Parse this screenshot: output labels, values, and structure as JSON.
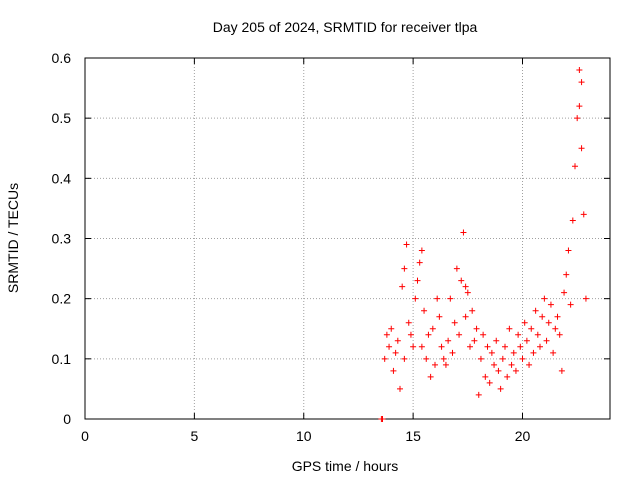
{
  "chart_data": {
    "type": "scatter",
    "title": "Day 205 of 2024, SRMTID for receiver tlpa",
    "xlabel": "GPS time / hours",
    "ylabel": "SRMTID / TECUs",
    "xlim": [
      0,
      24
    ],
    "ylim": [
      0,
      0.6
    ],
    "x_ticks": [
      0,
      5,
      10,
      15,
      20
    ],
    "x_tick_labels": [
      "0",
      "5",
      "10",
      "15",
      "20"
    ],
    "y_ticks": [
      0,
      0.1,
      0.2,
      0.3,
      0.4,
      0.5,
      0.6
    ],
    "y_tick_labels": [
      "0",
      "0.1",
      "0.2",
      "0.3",
      "0.4",
      "0.5",
      "0.6"
    ],
    "grid": true,
    "marker": "plus",
    "color": "#ff0000",
    "series": [
      {
        "name": "SRMTID",
        "x": [
          13.55,
          13.6,
          13.9,
          14.0,
          13.7,
          13.8,
          14.1,
          14.2,
          14.3,
          14.5,
          14.7,
          14.8,
          14.6,
          14.4,
          14.9,
          15.0,
          15.1,
          15.2,
          15.3,
          15.4,
          15.5,
          15.6,
          15.7,
          15.8,
          15.9,
          16.0,
          16.1,
          16.2,
          16.3,
          16.4,
          16.5,
          16.6,
          16.7,
          16.8,
          16.9,
          17.0,
          17.1,
          17.2,
          17.3,
          17.4,
          17.5,
          17.6,
          17.7,
          17.8,
          17.9,
          18.0,
          18.1,
          18.2,
          18.3,
          18.4,
          18.5,
          18.6,
          18.7,
          18.8,
          18.9,
          19.0,
          19.1,
          19.2,
          19.3,
          19.4,
          19.5,
          19.6,
          19.7,
          19.8,
          19.9,
          20.0,
          20.1,
          20.2,
          20.3,
          20.4,
          20.5,
          20.6,
          20.7,
          20.8,
          20.9,
          21.0,
          21.1,
          21.2,
          21.3,
          21.4,
          21.5,
          21.6,
          21.7,
          21.8,
          21.9,
          22.0,
          22.1,
          22.2,
          22.3,
          22.4,
          22.5,
          22.6,
          22.7,
          22.8,
          22.9,
          14.6,
          15.4,
          17.4,
          22.6,
          22.7
        ],
        "y": [
          0.0,
          0.0,
          0.12,
          0.15,
          0.1,
          0.14,
          0.08,
          0.11,
          0.13,
          0.22,
          0.29,
          0.16,
          0.1,
          0.05,
          0.14,
          0.12,
          0.2,
          0.23,
          0.26,
          0.12,
          0.18,
          0.1,
          0.14,
          0.07,
          0.15,
          0.09,
          0.2,
          0.17,
          0.12,
          0.1,
          0.09,
          0.13,
          0.2,
          0.11,
          0.16,
          0.25,
          0.14,
          0.23,
          0.31,
          0.17,
          0.21,
          0.12,
          0.18,
          0.13,
          0.15,
          0.04,
          0.1,
          0.14,
          0.07,
          0.12,
          0.06,
          0.11,
          0.09,
          0.13,
          0.08,
          0.05,
          0.1,
          0.12,
          0.07,
          0.15,
          0.09,
          0.11,
          0.08,
          0.14,
          0.12,
          0.1,
          0.16,
          0.13,
          0.09,
          0.15,
          0.11,
          0.18,
          0.14,
          0.12,
          0.17,
          0.2,
          0.13,
          0.16,
          0.19,
          0.11,
          0.15,
          0.17,
          0.14,
          0.08,
          0.21,
          0.24,
          0.28,
          0.19,
          0.33,
          0.42,
          0.5,
          0.58,
          0.45,
          0.34,
          0.2,
          0.25,
          0.28,
          0.22,
          0.52,
          0.56
        ]
      }
    ]
  }
}
